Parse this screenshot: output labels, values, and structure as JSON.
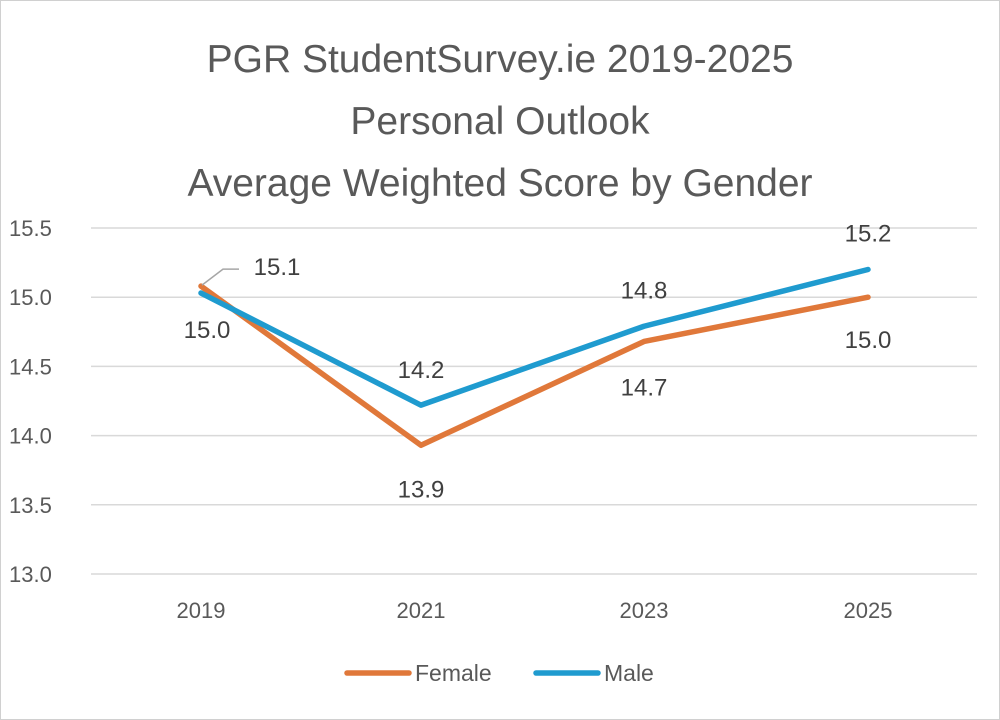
{
  "chart_data": {
    "type": "line",
    "title_lines": [
      "PGR StudentSurvey.ie 2019-2025",
      "Personal Outlook",
      "Average Weighted Score by Gender"
    ],
    "categories": [
      "2019",
      "2021",
      "2023",
      "2025"
    ],
    "series": [
      {
        "name": "Female",
        "color": "#E0783A",
        "values": [
          15.08,
          13.93,
          14.68,
          15.0
        ],
        "labels": [
          "15.1",
          "13.9",
          "14.7",
          "15.0"
        ]
      },
      {
        "name": "Male",
        "color": "#1F9BCF",
        "values": [
          15.03,
          14.22,
          14.79,
          15.2
        ],
        "labels": [
          "15.0",
          "14.2",
          "14.8",
          "15.2"
        ]
      }
    ],
    "ylim": [
      13.0,
      15.5
    ],
    "yticks": [
      "13.0",
      "13.5",
      "14.0",
      "14.5",
      "15.0",
      "15.5"
    ],
    "grid": true,
    "legend_position": "bottom"
  }
}
